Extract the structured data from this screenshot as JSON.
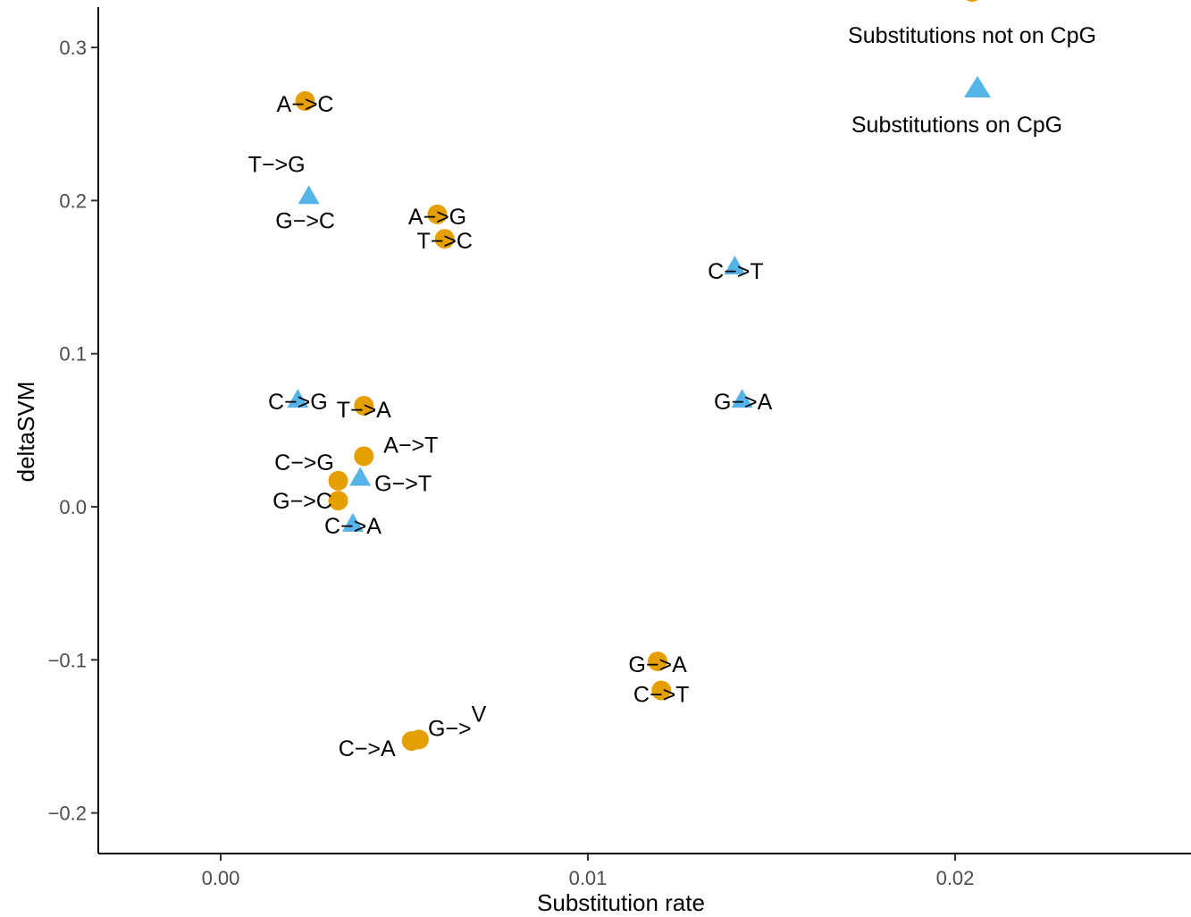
{
  "chart_data": {
    "type": "scatter",
    "xlabel": "Substitution rate",
    "ylabel": "deltaSVM",
    "xlim": [
      -0.0033,
      0.0263
    ],
    "ylim": [
      -0.225,
      0.325
    ],
    "x_ticks": [
      0.0,
      0.01,
      0.02
    ],
    "x_tick_labels": [
      "0.00",
      "0.01",
      "0.02"
    ],
    "y_ticks": [
      -0.2,
      -0.1,
      0.0,
      0.1,
      0.2,
      0.3
    ],
    "y_tick_labels": [
      "−0.2",
      "−0.1",
      "0.0",
      "0.1",
      "0.2",
      "0.3"
    ],
    "grid": false,
    "legend_placement": "top-right",
    "colors": {
      "not_cpg": "#E69F00",
      "cpg": "#56B4E9"
    },
    "series": [
      {
        "name": "Substitutions not on CpG",
        "marker": "circle",
        "points": [
          {
            "x": 0.0023,
            "y": 0.265,
            "label": "A−>C"
          },
          {
            "x": 0.0059,
            "y": 0.191,
            "label": "A−>G"
          },
          {
            "x": 0.0061,
            "y": 0.175,
            "label": "T−>C"
          },
          {
            "x": 0.0039,
            "y": 0.066,
            "label": "T−>A"
          },
          {
            "x": 0.0039,
            "y": 0.033,
            "label": "A−>T"
          },
          {
            "x": 0.0032,
            "y": 0.017,
            "label": "C−>G"
          },
          {
            "x": 0.0032,
            "y": 0.004,
            "label": "G−>C"
          },
          {
            "x": 0.0119,
            "y": -0.101,
            "label": "G−>A"
          },
          {
            "x": 0.012,
            "y": -0.12,
            "label": "C−>T"
          },
          {
            "x": 0.0052,
            "y": -0.153,
            "label": "C−>A"
          },
          {
            "x": 0.0054,
            "y": -0.152,
            "label": "G−>V"
          }
        ]
      },
      {
        "name": "Substitutions on CpG",
        "marker": "triangle",
        "points": [
          {
            "x": 0.0024,
            "y": 0.203,
            "label": "T−>G"
          },
          {
            "x": 0.0024,
            "y": 0.203,
            "label": "G−>C"
          },
          {
            "x": 0.014,
            "y": 0.157,
            "label": "C−>T"
          },
          {
            "x": 0.0142,
            "y": 0.07,
            "label": "G−>A"
          },
          {
            "x": 0.0021,
            "y": 0.07,
            "label": "C−>G"
          },
          {
            "x": 0.0038,
            "y": 0.019,
            "label": "G−>T"
          },
          {
            "x": 0.0036,
            "y": -0.011,
            "label": "C−>A"
          }
        ]
      }
    ]
  }
}
